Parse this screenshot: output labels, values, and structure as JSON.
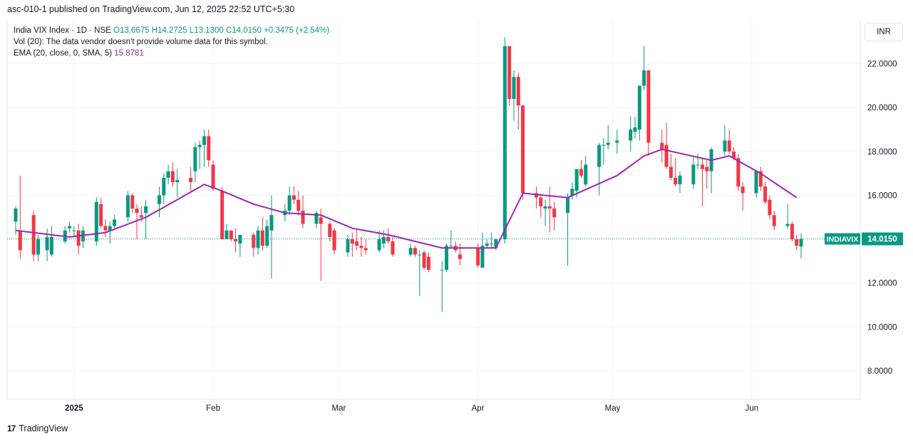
{
  "header": {
    "published": "asc-010-1 published on TradingView.com, Jun 12, 2025 22:52 UTC+5:30"
  },
  "legend": {
    "symbol": "India VIX Index · 1D · NSE",
    "open": "O13.6675",
    "high": "H14.2725",
    "low": "L13.1300",
    "close": "C14.0150",
    "change": "+0.3475 (+2.54%)",
    "vol": "Vol (20): The data vendor doesn't provide volume data for this symbol.",
    "ema_label": "EMA (20, close, 0, SMA, 5)",
    "ema_value": "15.8781"
  },
  "currency": "INR",
  "footer": {
    "brand": "TradingView",
    "logo": "17"
  },
  "colors": {
    "up": "#089981",
    "down": "#f23645",
    "ema": "#9c27b0",
    "grid": "#f0f3fa",
    "tag": "#089981"
  },
  "chart_data": {
    "type": "candlestick",
    "symbol_tag": "INDIAVIX",
    "last_price": 14.015,
    "last_price_label": "14.0150",
    "ylim": [
      6.7,
      24.0
    ],
    "y_ticks": [
      8,
      10,
      12,
      14,
      16,
      18,
      20,
      22
    ],
    "y_tick_labels": [
      "8.0000",
      "10.0000",
      "12.0000",
      "14.0000",
      "16.0000",
      "18.0000",
      "20.0000",
      "22.0000"
    ],
    "x_ticks": [
      {
        "label": "2025",
        "date": "2025-01-01"
      },
      {
        "label": "Feb",
        "date": "2025-02-01"
      },
      {
        "label": "Mar",
        "date": "2025-03-01"
      },
      {
        "label": "Apr",
        "date": "2025-04-01"
      },
      {
        "label": "May",
        "date": "2025-05-01"
      },
      {
        "label": "Jun",
        "date": "2025-06-01"
      }
    ],
    "candles": [
      {
        "date": "2024-12-19",
        "o": 14.8,
        "h": 15.5,
        "l": 14.2,
        "c": 15.4
      },
      {
        "date": "2024-12-20",
        "o": 14.4,
        "h": 16.9,
        "l": 13.1,
        "c": 13.5
      },
      {
        "date": "2024-12-23",
        "o": 15.1,
        "h": 15.3,
        "l": 13.0,
        "c": 13.3
      },
      {
        "date": "2024-12-24",
        "o": 13.3,
        "h": 14.2,
        "l": 13.0,
        "c": 14.0
      },
      {
        "date": "2024-12-26",
        "o": 13.5,
        "h": 14.5,
        "l": 13.0,
        "c": 14.1
      },
      {
        "date": "2024-12-27",
        "o": 13.3,
        "h": 14.6,
        "l": 13.2,
        "c": 14.1
      },
      {
        "date": "2024-12-30",
        "o": 13.9,
        "h": 14.6,
        "l": 13.8,
        "c": 14.4
      },
      {
        "date": "2024-12-31",
        "o": 14.5,
        "h": 14.8,
        "l": 14.3,
        "c": 14.6
      },
      {
        "date": "2025-01-01",
        "o": 14.4,
        "h": 14.6,
        "l": 14.1,
        "c": 14.4
      },
      {
        "date": "2025-01-02",
        "o": 14.4,
        "h": 14.7,
        "l": 13.3,
        "c": 13.7
      },
      {
        "date": "2025-01-03",
        "o": 13.9,
        "h": 14.6,
        "l": 13.6,
        "c": 14.4
      },
      {
        "date": "2025-01-06",
        "o": 13.9,
        "h": 15.9,
        "l": 13.7,
        "c": 15.7
      },
      {
        "date": "2025-01-07",
        "o": 15.6,
        "h": 15.9,
        "l": 14.5,
        "c": 14.6
      },
      {
        "date": "2025-01-08",
        "o": 14.6,
        "h": 14.9,
        "l": 14.1,
        "c": 14.4
      },
      {
        "date": "2025-01-09",
        "o": 14.4,
        "h": 14.8,
        "l": 13.8,
        "c": 14.6
      },
      {
        "date": "2025-01-10",
        "o": 14.6,
        "h": 15.1,
        "l": 14.5,
        "c": 14.9
      },
      {
        "date": "2025-01-13",
        "o": 15.0,
        "h": 16.2,
        "l": 14.8,
        "c": 16.0
      },
      {
        "date": "2025-01-14",
        "o": 16.0,
        "h": 16.1,
        "l": 15.2,
        "c": 15.4
      },
      {
        "date": "2025-01-15",
        "o": 15.4,
        "h": 15.6,
        "l": 14.0,
        "c": 15.2
      },
      {
        "date": "2025-01-16",
        "o": 15.1,
        "h": 15.5,
        "l": 14.8,
        "c": 15.0
      },
      {
        "date": "2025-01-17",
        "o": 15.2,
        "h": 15.8,
        "l": 14.0,
        "c": 15.5
      },
      {
        "date": "2025-01-20",
        "o": 15.6,
        "h": 16.4,
        "l": 15.0,
        "c": 16.0
      },
      {
        "date": "2025-01-21",
        "o": 16.0,
        "h": 17.0,
        "l": 15.6,
        "c": 16.8
      },
      {
        "date": "2025-01-22",
        "o": 16.8,
        "h": 17.4,
        "l": 16.5,
        "c": 17.1
      },
      {
        "date": "2025-01-23",
        "o": 17.1,
        "h": 17.5,
        "l": 16.4,
        "c": 16.6
      },
      {
        "date": "2025-01-24",
        "o": 16.6,
        "h": 17.2,
        "l": 15.9,
        "c": 16.7
      },
      {
        "date": "2025-01-27",
        "o": 16.8,
        "h": 17.3,
        "l": 16.2,
        "c": 16.6
      },
      {
        "date": "2025-01-28",
        "o": 17.1,
        "h": 18.4,
        "l": 16.6,
        "c": 18.2
      },
      {
        "date": "2025-01-29",
        "o": 18.2,
        "h": 18.5,
        "l": 17.2,
        "c": 18.3
      },
      {
        "date": "2025-01-30",
        "o": 18.3,
        "h": 19.0,
        "l": 17.3,
        "c": 18.7
      },
      {
        "date": "2025-01-31",
        "o": 18.7,
        "h": 19.0,
        "l": 17.3,
        "c": 17.6
      },
      {
        "date": "2025-02-01",
        "o": 17.4,
        "h": 17.6,
        "l": 16.2,
        "c": 16.3
      },
      {
        "date": "2025-02-03",
        "o": 16.2,
        "h": 16.4,
        "l": 14.0,
        "c": 14.0
      },
      {
        "date": "2025-02-04",
        "o": 14.0,
        "h": 14.7,
        "l": 14.0,
        "c": 14.4
      },
      {
        "date": "2025-02-05",
        "o": 14.4,
        "h": 14.4,
        "l": 13.9,
        "c": 14.0
      },
      {
        "date": "2025-02-06",
        "o": 14.0,
        "h": 14.5,
        "l": 13.4,
        "c": 13.9
      },
      {
        "date": "2025-02-07",
        "o": 13.8,
        "h": 14.1,
        "l": 13.2,
        "c": 14.2
      },
      {
        "date": "2025-02-10",
        "o": 14.2,
        "h": 14.3,
        "l": 13.2,
        "c": 13.6
      },
      {
        "date": "2025-02-11",
        "o": 13.6,
        "h": 14.6,
        "l": 13.3,
        "c": 14.4
      },
      {
        "date": "2025-02-12",
        "o": 14.4,
        "h": 15.0,
        "l": 13.5,
        "c": 13.7
      },
      {
        "date": "2025-02-13",
        "o": 13.7,
        "h": 14.9,
        "l": 13.6,
        "c": 14.6
      },
      {
        "date": "2025-02-14",
        "o": 14.4,
        "h": 16.0,
        "l": 12.2,
        "c": 15.1
      },
      {
        "date": "2025-02-17",
        "o": 15.1,
        "h": 15.6,
        "l": 14.8,
        "c": 15.3
      },
      {
        "date": "2025-02-18",
        "o": 15.3,
        "h": 16.4,
        "l": 15.1,
        "c": 16.0
      },
      {
        "date": "2025-02-19",
        "o": 16.0,
        "h": 16.4,
        "l": 15.6,
        "c": 15.8
      },
      {
        "date": "2025-02-20",
        "o": 15.8,
        "h": 16.2,
        "l": 15.1,
        "c": 15.3
      },
      {
        "date": "2025-02-21",
        "o": 15.3,
        "h": 16.0,
        "l": 14.5,
        "c": 14.7
      },
      {
        "date": "2025-02-24",
        "o": 14.7,
        "h": 15.3,
        "l": 14.5,
        "c": 15.2
      },
      {
        "date": "2025-02-25",
        "o": 15.0,
        "h": 15.4,
        "l": 12.1,
        "c": 14.7
      },
      {
        "date": "2025-02-27",
        "o": 14.7,
        "h": 14.8,
        "l": 13.9,
        "c": 14.1
      },
      {
        "date": "2025-02-28",
        "o": 14.4,
        "h": 14.5,
        "l": 13.3,
        "c": 13.5
      },
      {
        "date": "2025-03-03",
        "o": 13.4,
        "h": 14.2,
        "l": 13.2,
        "c": 14.0
      },
      {
        "date": "2025-03-04",
        "o": 14.0,
        "h": 14.3,
        "l": 13.2,
        "c": 13.8
      },
      {
        "date": "2025-03-05",
        "o": 13.9,
        "h": 14.4,
        "l": 13.5,
        "c": 13.7
      },
      {
        "date": "2025-03-06",
        "o": 13.7,
        "h": 14.1,
        "l": 13.2,
        "c": 13.6
      },
      {
        "date": "2025-03-07",
        "o": 13.6,
        "h": 14.0,
        "l": 13.3,
        "c": 13.5
      },
      {
        "date": "2025-03-10",
        "o": 13.5,
        "h": 14.4,
        "l": 13.4,
        "c": 14.0
      },
      {
        "date": "2025-03-11",
        "o": 13.8,
        "h": 14.4,
        "l": 13.6,
        "c": 14.1
      },
      {
        "date": "2025-03-12",
        "o": 14.1,
        "h": 14.5,
        "l": 13.8,
        "c": 13.9
      },
      {
        "date": "2025-03-13",
        "o": 13.9,
        "h": 14.1,
        "l": 13.2,
        "c": 13.3
      },
      {
        "date": "2025-03-17",
        "o": 13.3,
        "h": 13.8,
        "l": 13.2,
        "c": 13.6
      },
      {
        "date": "2025-03-18",
        "o": 13.6,
        "h": 13.7,
        "l": 13.2,
        "c": 13.3
      },
      {
        "date": "2025-03-19",
        "o": 13.3,
        "h": 13.5,
        "l": 11.4,
        "c": 13.3
      },
      {
        "date": "2025-03-20",
        "o": 13.4,
        "h": 13.5,
        "l": 12.6,
        "c": 12.7
      },
      {
        "date": "2025-03-21",
        "o": 13.2,
        "h": 13.4,
        "l": 12.5,
        "c": 12.6
      },
      {
        "date": "2025-03-24",
        "o": 12.6,
        "h": 13.0,
        "l": 10.7,
        "c": 12.6
      },
      {
        "date": "2025-03-25",
        "o": 12.6,
        "h": 13.8,
        "l": 12.5,
        "c": 13.7
      },
      {
        "date": "2025-03-26",
        "o": 13.7,
        "h": 14.4,
        "l": 13.6,
        "c": 13.7
      },
      {
        "date": "2025-03-27",
        "o": 13.7,
        "h": 13.9,
        "l": 13.4,
        "c": 13.5
      },
      {
        "date": "2025-03-28",
        "o": 13.3,
        "h": 13.8,
        "l": 12.8,
        "c": 13.1
      },
      {
        "date": "2025-04-01",
        "o": 13.6,
        "h": 13.8,
        "l": 12.7,
        "c": 12.8
      },
      {
        "date": "2025-04-02",
        "o": 12.7,
        "h": 14.3,
        "l": 12.7,
        "c": 13.7
      },
      {
        "date": "2025-04-03",
        "o": 13.7,
        "h": 14.0,
        "l": 13.6,
        "c": 13.8
      },
      {
        "date": "2025-04-04",
        "o": 13.8,
        "h": 14.3,
        "l": 13.6,
        "c": 13.8
      },
      {
        "date": "2025-04-05",
        "o": 13.6,
        "h": 14.0,
        "l": 13.5,
        "c": 14.0
      },
      {
        "date": "2025-04-07",
        "o": 14.0,
        "h": 23.2,
        "l": 13.8,
        "c": 22.8
      },
      {
        "date": "2025-04-08",
        "o": 22.8,
        "h": 22.8,
        "l": 20.1,
        "c": 20.4
      },
      {
        "date": "2025-04-09",
        "o": 20.4,
        "h": 21.7,
        "l": 19.4,
        "c": 21.4
      },
      {
        "date": "2025-04-10",
        "o": 21.4,
        "h": 21.6,
        "l": 19.0,
        "c": 20.1
      },
      {
        "date": "2025-04-11",
        "o": 20.1,
        "h": 20.1,
        "l": 15.8,
        "c": 16.1
      },
      {
        "date": "2025-04-14",
        "o": 16.1,
        "h": 16.4,
        "l": 15.4,
        "c": 15.9
      },
      {
        "date": "2025-04-15",
        "o": 15.9,
        "h": 16.0,
        "l": 15.0,
        "c": 15.5
      },
      {
        "date": "2025-04-16",
        "o": 15.4,
        "h": 15.8,
        "l": 14.6,
        "c": 15.5
      },
      {
        "date": "2025-04-17",
        "o": 15.5,
        "h": 16.4,
        "l": 14.3,
        "c": 15.4
      },
      {
        "date": "2025-04-18",
        "o": 15.4,
        "h": 15.7,
        "l": 14.4,
        "c": 15.0
      },
      {
        "date": "2025-04-21",
        "o": 15.2,
        "h": 16.1,
        "l": 12.8,
        "c": 15.9
      },
      {
        "date": "2025-04-22",
        "o": 16.0,
        "h": 16.6,
        "l": 15.8,
        "c": 16.3
      },
      {
        "date": "2025-04-23",
        "o": 16.2,
        "h": 17.2,
        "l": 15.9,
        "c": 17.2
      },
      {
        "date": "2025-04-24",
        "o": 17.2,
        "h": 17.6,
        "l": 16.8,
        "c": 16.9
      },
      {
        "date": "2025-04-25",
        "o": 16.5,
        "h": 17.8,
        "l": 16.4,
        "c": 17.4
      },
      {
        "date": "2025-04-28",
        "o": 17.3,
        "h": 18.4,
        "l": 16.0,
        "c": 18.3
      },
      {
        "date": "2025-04-29",
        "o": 18.3,
        "h": 18.6,
        "l": 17.4,
        "c": 18.3
      },
      {
        "date": "2025-04-30",
        "o": 18.3,
        "h": 19.2,
        "l": 18.1,
        "c": 18.4
      },
      {
        "date": "2025-05-02",
        "o": 18.4,
        "h": 19.0,
        "l": 17.9,
        "c": 18.5
      },
      {
        "date": "2025-05-05",
        "o": 18.5,
        "h": 19.6,
        "l": 18.0,
        "c": 19.0
      },
      {
        "date": "2025-05-06",
        "o": 18.9,
        "h": 19.6,
        "l": 18.6,
        "c": 19.1
      },
      {
        "date": "2025-05-07",
        "o": 19.0,
        "h": 21.0,
        "l": 18.5,
        "c": 21.0
      },
      {
        "date": "2025-05-08",
        "o": 21.0,
        "h": 22.8,
        "l": 20.8,
        "c": 21.7
      },
      {
        "date": "2025-05-09",
        "o": 21.7,
        "h": 21.7,
        "l": 17.8,
        "c": 18.4
      },
      {
        "date": "2025-05-12",
        "o": 18.4,
        "h": 19.0,
        "l": 17.5,
        "c": 18.1
      },
      {
        "date": "2025-05-13",
        "o": 18.3,
        "h": 19.3,
        "l": 17.2,
        "c": 17.3
      },
      {
        "date": "2025-05-14",
        "o": 17.3,
        "h": 17.9,
        "l": 16.7,
        "c": 16.8
      },
      {
        "date": "2025-05-15",
        "o": 16.8,
        "h": 17.7,
        "l": 16.4,
        "c": 16.5
      },
      {
        "date": "2025-05-16",
        "o": 16.5,
        "h": 17.1,
        "l": 16.1,
        "c": 16.9
      },
      {
        "date": "2025-05-19",
        "o": 16.5,
        "h": 17.8,
        "l": 16.3,
        "c": 17.4
      },
      {
        "date": "2025-05-20",
        "o": 17.4,
        "h": 17.9,
        "l": 17.2,
        "c": 17.4
      },
      {
        "date": "2025-05-21",
        "o": 17.4,
        "h": 17.7,
        "l": 15.5,
        "c": 17.2
      },
      {
        "date": "2025-05-22",
        "o": 17.3,
        "h": 17.6,
        "l": 16.3,
        "c": 17.1
      },
      {
        "date": "2025-05-23",
        "o": 17.1,
        "h": 18.2,
        "l": 16.1,
        "c": 18.1
      },
      {
        "date": "2025-05-26",
        "o": 18.0,
        "h": 19.2,
        "l": 17.8,
        "c": 18.5
      },
      {
        "date": "2025-05-27",
        "o": 18.5,
        "h": 19.0,
        "l": 17.9,
        "c": 18.0
      },
      {
        "date": "2025-05-28",
        "o": 18.0,
        "h": 18.2,
        "l": 17.6,
        "c": 17.7
      },
      {
        "date": "2025-05-29",
        "o": 17.7,
        "h": 17.9,
        "l": 16.2,
        "c": 16.4
      },
      {
        "date": "2025-05-30",
        "o": 16.4,
        "h": 16.6,
        "l": 15.3,
        "c": 16.1
      },
      {
        "date": "2025-06-02",
        "o": 16.1,
        "h": 17.1,
        "l": 15.9,
        "c": 17.1
      },
      {
        "date": "2025-06-03",
        "o": 17.1,
        "h": 17.3,
        "l": 16.2,
        "c": 16.4
      },
      {
        "date": "2025-06-04",
        "o": 16.4,
        "h": 16.6,
        "l": 15.6,
        "c": 15.7
      },
      {
        "date": "2025-06-05",
        "o": 15.8,
        "h": 16.0,
        "l": 14.9,
        "c": 15.1
      },
      {
        "date": "2025-06-06",
        "o": 15.1,
        "h": 15.3,
        "l": 14.4,
        "c": 14.6
      },
      {
        "date": "2025-06-09",
        "o": 14.6,
        "h": 15.6,
        "l": 14.5,
        "c": 14.7
      },
      {
        "date": "2025-06-10",
        "o": 14.7,
        "h": 14.8,
        "l": 13.9,
        "c": 14.0
      },
      {
        "date": "2025-06-11",
        "o": 14.0,
        "h": 14.2,
        "l": 13.5,
        "c": 13.7
      },
      {
        "date": "2025-06-12",
        "o": 13.6675,
        "h": 14.2725,
        "l": 13.13,
        "c": 14.015
      }
    ],
    "ema": {
      "name": "EMA (20, close, 0, SMA, 5)",
      "dates": [
        "2024-12-19",
        "2024-12-31",
        "2025-01-08",
        "2025-01-17",
        "2025-01-24",
        "2025-01-30",
        "2025-02-03",
        "2025-02-10",
        "2025-02-17",
        "2025-02-25",
        "2025-03-04",
        "2025-03-12",
        "2025-03-24",
        "2025-04-05",
        "2025-04-11",
        "2025-04-21",
        "2025-05-02",
        "2025-05-08",
        "2025-05-12",
        "2025-05-23",
        "2025-05-27",
        "2025-06-03",
        "2025-06-11"
      ],
      "values": [
        14.4,
        14.1,
        14.3,
        15.0,
        15.8,
        16.5,
        16.2,
        15.6,
        15.2,
        15.1,
        14.5,
        14.2,
        13.6,
        13.6,
        16.1,
        15.9,
        16.9,
        17.8,
        18.1,
        17.6,
        17.8,
        17.0,
        15.9
      ]
    }
  }
}
